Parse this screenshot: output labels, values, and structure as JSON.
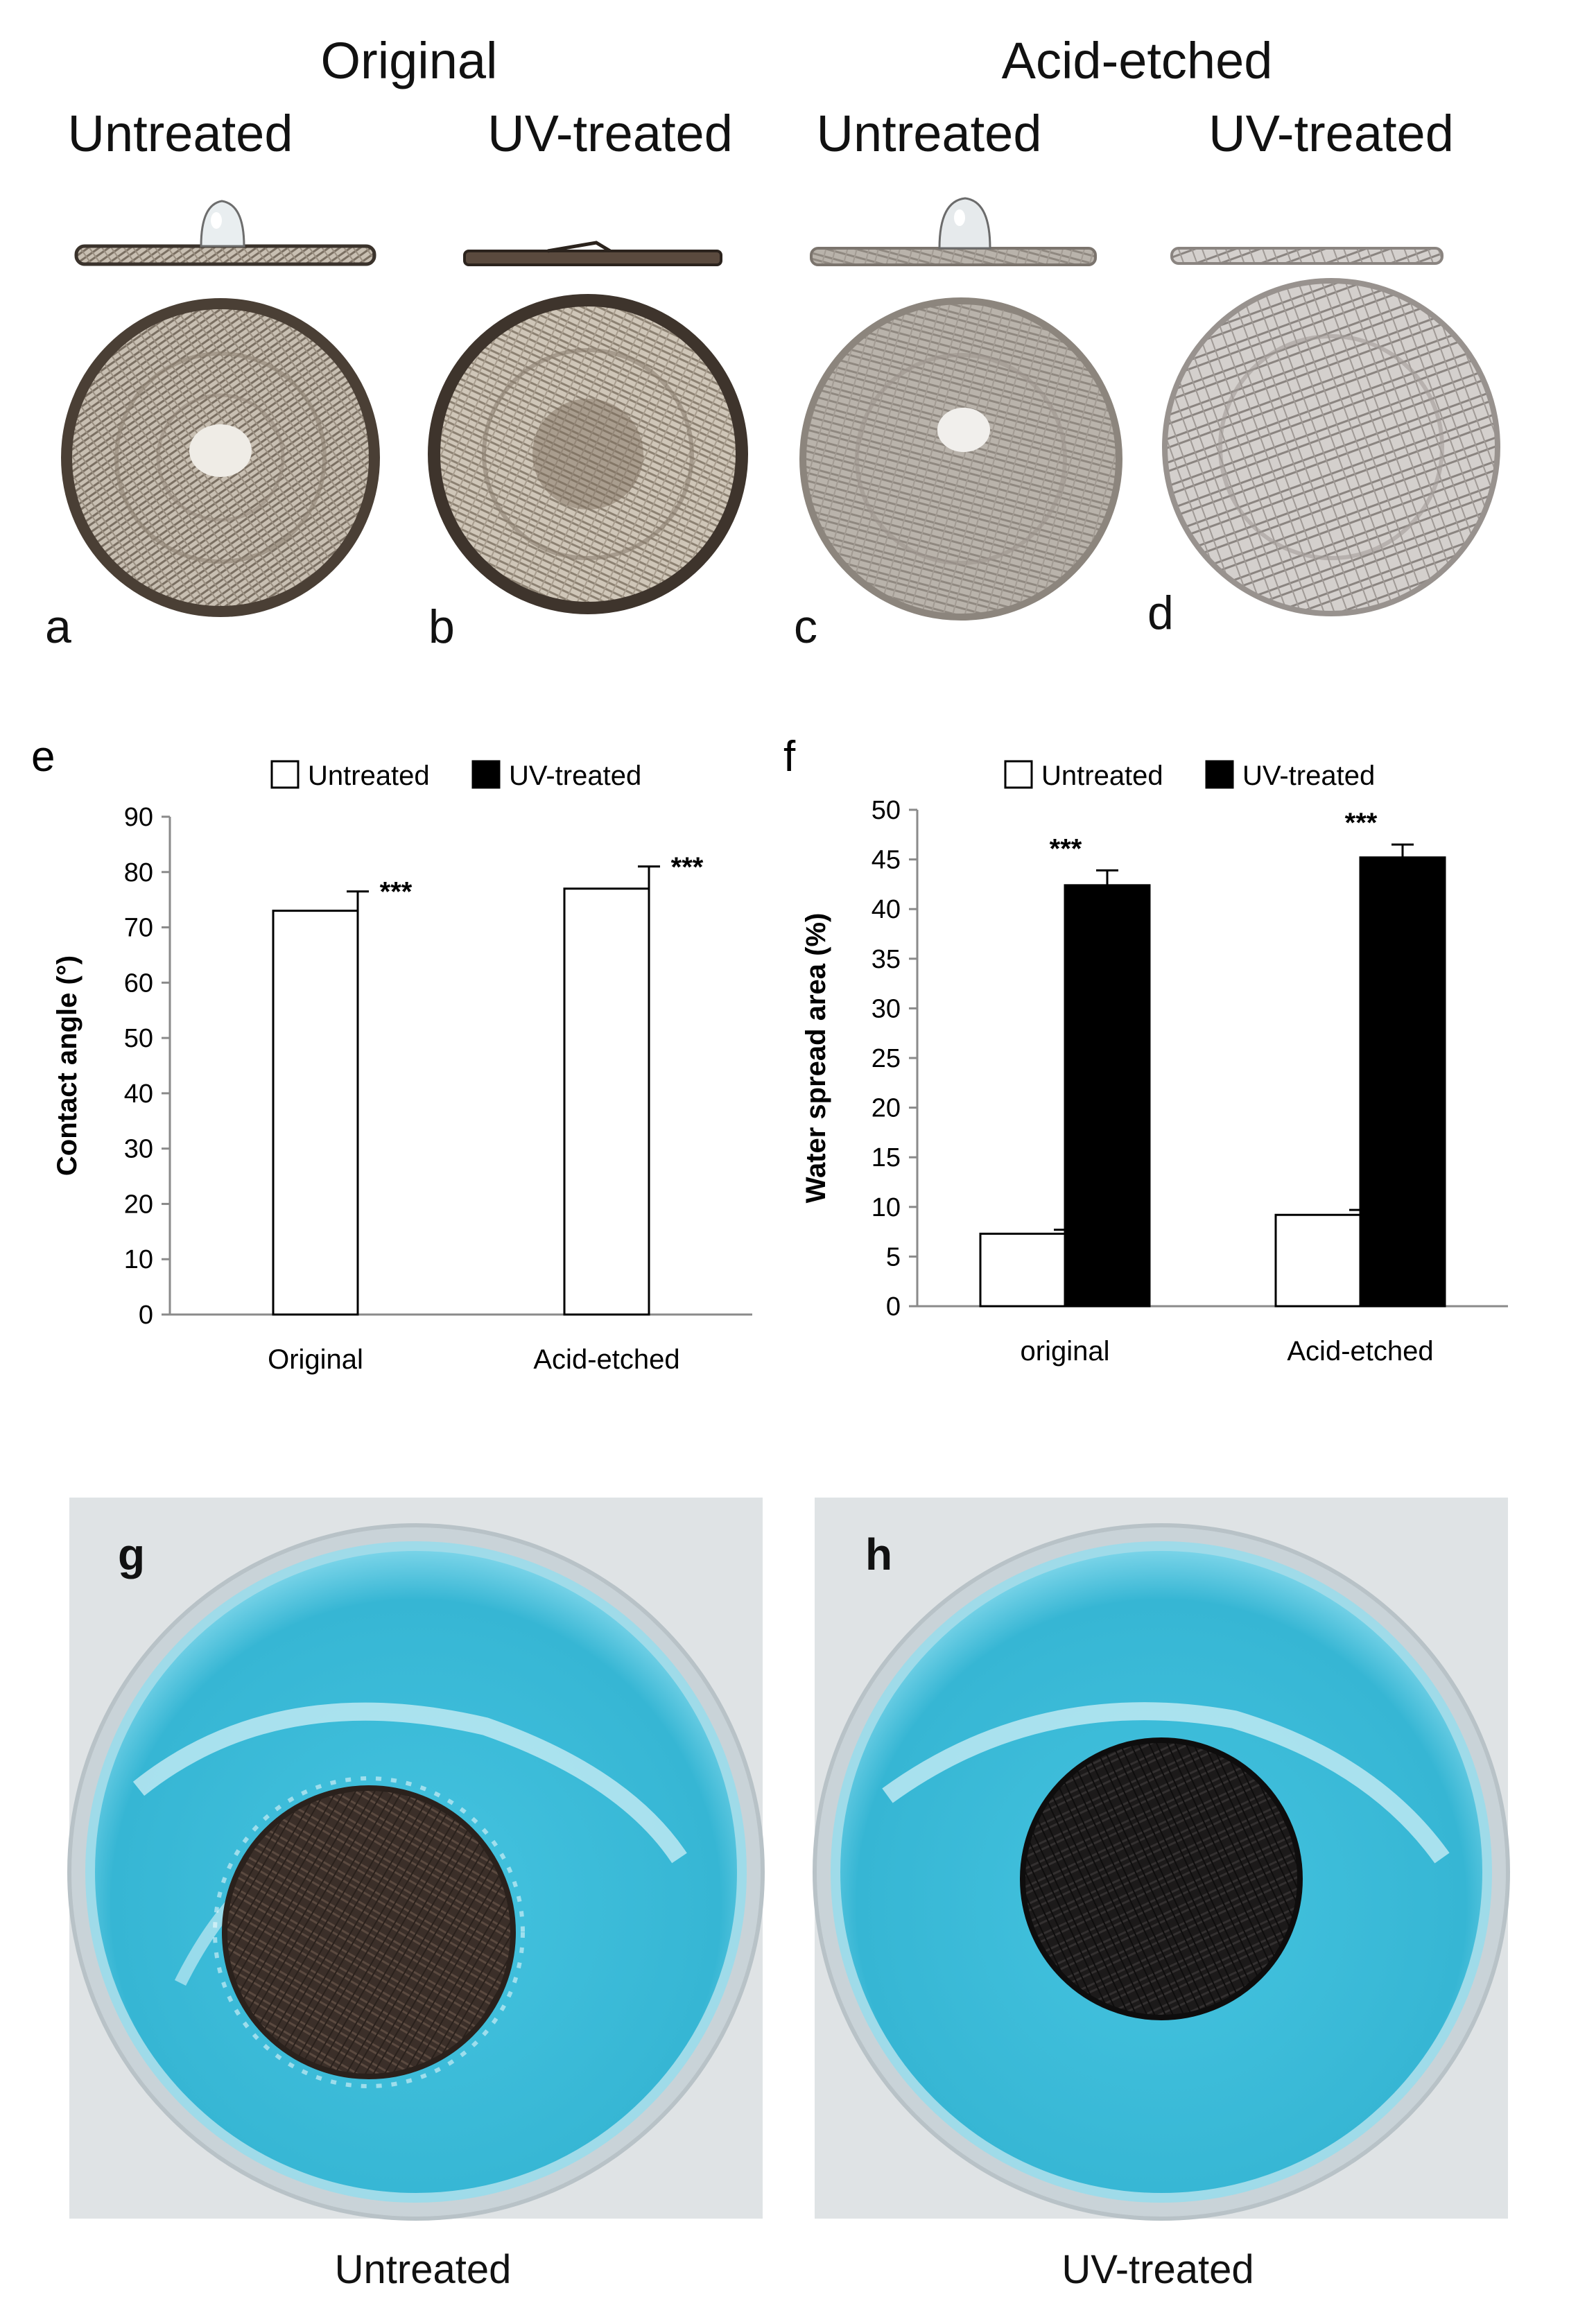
{
  "panel_top": {
    "groups": [
      {
        "title": "Original",
        "sub": [
          "Untreated",
          "UV-treated"
        ]
      },
      {
        "title": "Acid-etched",
        "sub": [
          "Untreated",
          "UV-treated"
        ]
      }
    ],
    "labels": [
      "a",
      "b",
      "c",
      "d"
    ]
  },
  "panel_photos": {
    "labels": [
      "g",
      "h"
    ],
    "captions": [
      "Untreated",
      "UV-treated"
    ],
    "colors": {
      "dye": "#3cb9d6",
      "dye_light": "#7fd6ea",
      "mesh_untreated": "#3b2f29",
      "mesh_uv": "#1c1a1a",
      "plate": "#dfe3e5"
    }
  },
  "chart_data": [
    {
      "panel": "e",
      "type": "bar",
      "categories": [
        "Original",
        "Acid-etched"
      ],
      "series": [
        {
          "name": "Untreated",
          "values": [
            73,
            77
          ],
          "errors": [
            3.5,
            4
          ]
        }
      ],
      "legend": [
        "Untreated",
        "UV-treated"
      ],
      "legend_placement": "top",
      "ylabel": "Contact angle (°)",
      "ylim": [
        0,
        90
      ],
      "yticks": [
        0,
        10,
        20,
        30,
        40,
        50,
        60,
        70,
        80,
        90
      ],
      "significance": [
        "***",
        "***"
      ],
      "grid": false
    },
    {
      "panel": "f",
      "type": "bar",
      "categories": [
        "original",
        "Acid-etched"
      ],
      "series": [
        {
          "name": "Untreated",
          "values": [
            7.3,
            9.2
          ],
          "errors": [
            0.4,
            0.5
          ]
        },
        {
          "name": "UV-treated",
          "values": [
            42.4,
            45.2
          ],
          "errors": [
            1.5,
            1.3
          ]
        }
      ],
      "legend": [
        "Untreated",
        "UV-treated"
      ],
      "legend_placement": "top",
      "ylabel": "Water spread area (%)",
      "ylim": [
        0,
        50
      ],
      "yticks": [
        0,
        5,
        10,
        15,
        20,
        25,
        30,
        35,
        40,
        45,
        50
      ],
      "significance": [
        "***",
        "***"
      ],
      "grid": false
    }
  ]
}
